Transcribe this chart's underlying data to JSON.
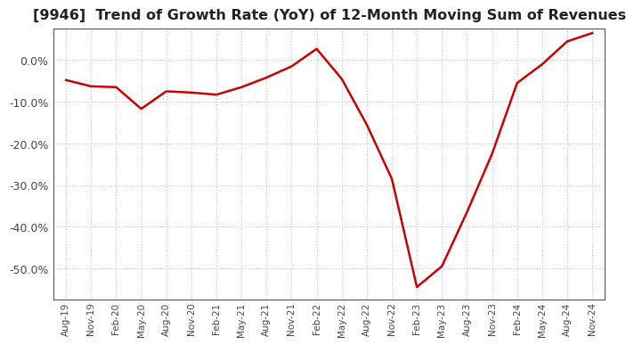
{
  "title": "[9946]  Trend of Growth Rate (YoY) of 12-Month Moving Sum of Revenues",
  "title_fontsize": 11.5,
  "line_color": "#cc0000",
  "line_width": 1.8,
  "background_color": "#ffffff",
  "plot_bg_color": "#ffffff",
  "grid_color": "#bbbbbb",
  "ylim": [
    -0.575,
    0.075
  ],
  "yticks": [
    0.0,
    -0.1,
    -0.2,
    -0.3,
    -0.4,
    -0.5
  ],
  "dates": [
    "Aug-19",
    "Nov-19",
    "Feb-20",
    "May-20",
    "Aug-20",
    "Nov-20",
    "Feb-21",
    "May-21",
    "Aug-21",
    "Nov-21",
    "Feb-22",
    "May-22",
    "Aug-22",
    "Nov-22",
    "Feb-23",
    "May-23",
    "Aug-23",
    "Nov-23",
    "Feb-24",
    "May-24",
    "Aug-24",
    "Nov-24"
  ],
  "values": [
    -0.048,
    -0.063,
    -0.065,
    -0.117,
    -0.075,
    -0.078,
    -0.083,
    -0.065,
    -0.042,
    -0.015,
    0.027,
    -0.045,
    -0.155,
    -0.285,
    -0.545,
    -0.495,
    -0.365,
    -0.225,
    -0.055,
    -0.01,
    0.045,
    0.065
  ]
}
